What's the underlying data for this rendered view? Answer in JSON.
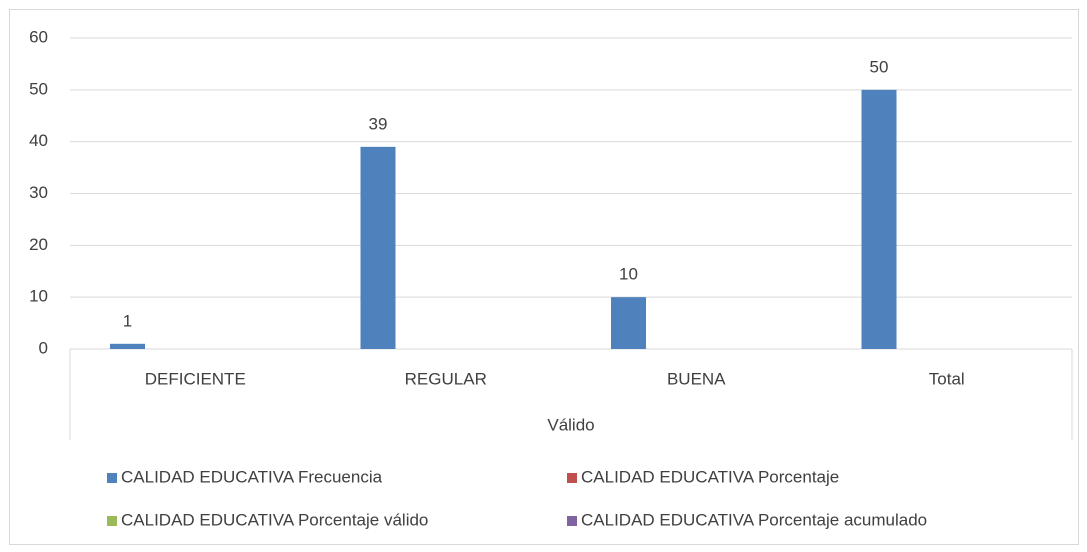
{
  "chart_data": {
    "type": "bar",
    "categories": [
      "DEFICIENTE",
      "REGULAR",
      "BUENA",
      "Total"
    ],
    "group_label": "Válido",
    "series": [
      {
        "name": "CALIDAD EDUCATIVA Frecuencia",
        "color": "#4f81bd",
        "values": [
          1,
          39,
          10,
          50
        ]
      },
      {
        "name": "CALIDAD EDUCATIVA Porcentaje",
        "color": "#c0504d",
        "values": [
          null,
          null,
          null,
          null
        ]
      },
      {
        "name": "CALIDAD EDUCATIVA Porcentaje válido",
        "color": "#9bbb59",
        "values": [
          null,
          null,
          null,
          null
        ]
      },
      {
        "name": "CALIDAD EDUCATIVA Porcentaje acumulado",
        "color": "#8064a2",
        "values": [
          null,
          null,
          null,
          null
        ]
      }
    ],
    "ylim": [
      0,
      60
    ],
    "yticks": [
      0,
      10,
      20,
      30,
      40,
      50,
      60
    ],
    "grid": true,
    "legend": "bottom",
    "data_labels": true
  }
}
